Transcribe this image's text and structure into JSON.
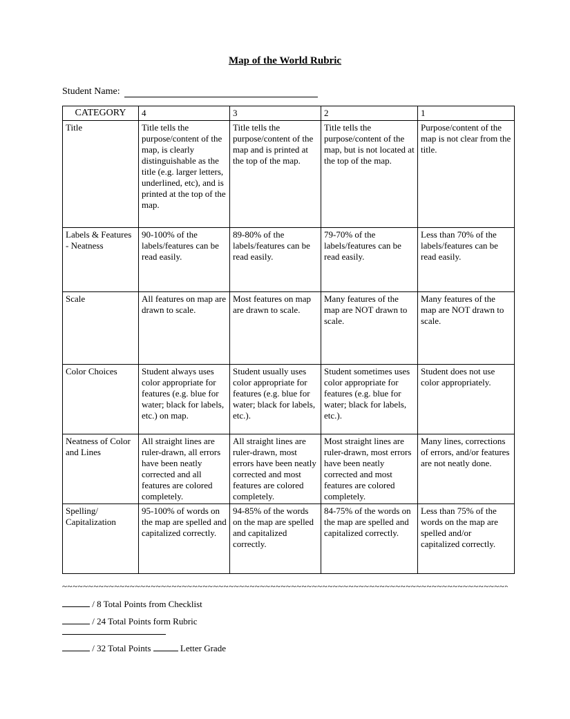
{
  "title": "Map of the World Rubric",
  "student_name_label": "Student Name:",
  "table": {
    "header": [
      "CATEGORY",
      "4",
      "3",
      "2",
      "1"
    ],
    "rows": [
      {
        "category": "Title",
        "c4": "Title tells the purpose/content of the map, is clearly distinguishable as the title (e.g. larger letters, underlined, etc), and is printed at the top of the map.",
        "c3": "Title tells the purpose/content of the map and is printed at the top of the map.",
        "c2": "Title tells the purpose/content of the map, but is not located at the top of the map.",
        "c1": "Purpose/content of the map is not clear from the title."
      },
      {
        "category": "Labels & Features - Neatness",
        "c4": "90-100% of the labels/features can be read easily.",
        "c3": "89-80% of the labels/features can be read easily.",
        "c2": "79-70% of the labels/features can be read easily.",
        "c1": "Less than 70% of the labels/features can be read easily."
      },
      {
        "category": "Scale",
        "c4": "All features on map are drawn to scale.",
        "c3": "Most features on map are drawn to scale.",
        "c2": "Many features of the map are NOT drawn to scale.",
        "c1": "Many features of the map are NOT drawn to scale."
      },
      {
        "category": "Color Choices",
        "c4": "Student always uses color appropriate for features (e.g. blue for water; black for labels, etc.) on map.",
        "c3": "Student usually uses color appropriate for features (e.g. blue for water; black for labels, etc.).",
        "c2": "Student sometimes uses color appropriate for features (e.g. blue for water; black for labels, etc.).",
        "c1": "Student does not use color appropriately."
      },
      {
        "category": "Neatness of Color and Lines",
        "c4": "All straight lines are ruler-drawn, all errors have been neatly corrected and all features are colored completely.",
        "c3": "All straight lines are ruler-drawn, most errors have been neatly corrected and most features are colored completely.",
        "c2": "Most straight lines are ruler-drawn, most errors have been neatly corrected and most features are colored completely.",
        "c1": "Many lines, corrections of errors, and/or features are not neatly done."
      },
      {
        "category": "Spelling/ Capitalization",
        "c4": "95-100% of words on the map are spelled and capitalized correctly.",
        "c3": "94-85% of the words on the map are spelled and capitalized correctly.",
        "c2": "84-75% of the words on the map are spelled and capitalized correctly.",
        "c1": "Less than 75% of the words on the map are spelled and/or capitalized correctly."
      }
    ]
  },
  "totals": {
    "line1_suffix": "/ 8  Total Points from Checklist",
    "line2_suffix": "/ 24 Total Points form Rubric",
    "line3_mid": "/ 32 Total Points",
    "line3_end": "Letter Grade"
  }
}
